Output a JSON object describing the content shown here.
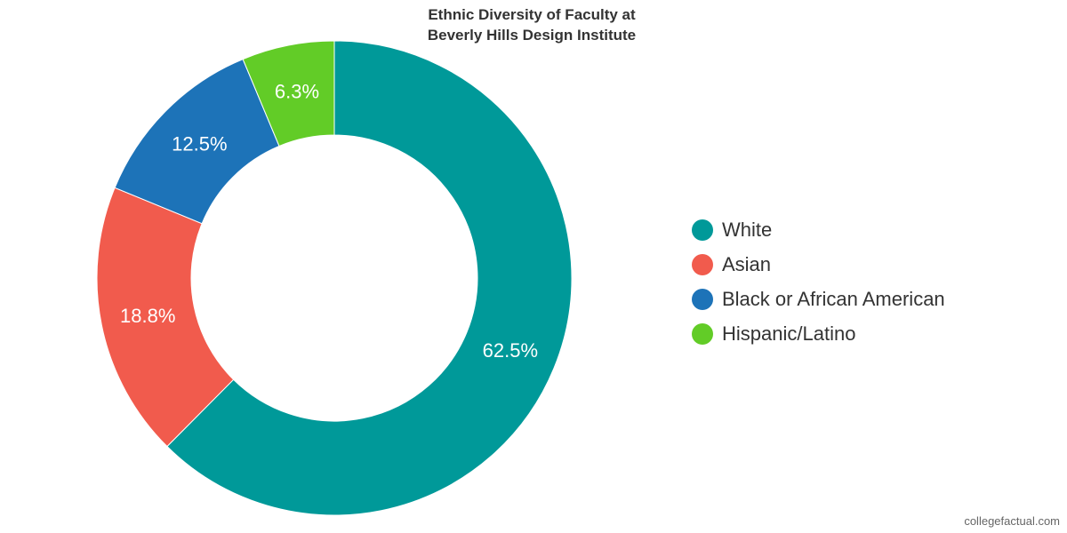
{
  "chart_data": {
    "type": "pie",
    "style": "donut",
    "title": [
      "Ethnic Diversity of Faculty at",
      "Beverly Hills Design Institute"
    ],
    "slices": [
      {
        "label": "White",
        "value": 62.5,
        "display": "62.5%",
        "color": "#009999"
      },
      {
        "label": "Asian",
        "value": 18.8,
        "display": "18.8%",
        "color": "#f15b4d"
      },
      {
        "label": "Black or African American",
        "value": 12.5,
        "display": "12.5%",
        "color": "#1d73b8"
      },
      {
        "label": "Hispanic/Latino",
        "value": 6.3,
        "display": "6.3%",
        "color": "#62cc27"
      }
    ],
    "legend_position": "right"
  },
  "credit": "collegefactual.com"
}
